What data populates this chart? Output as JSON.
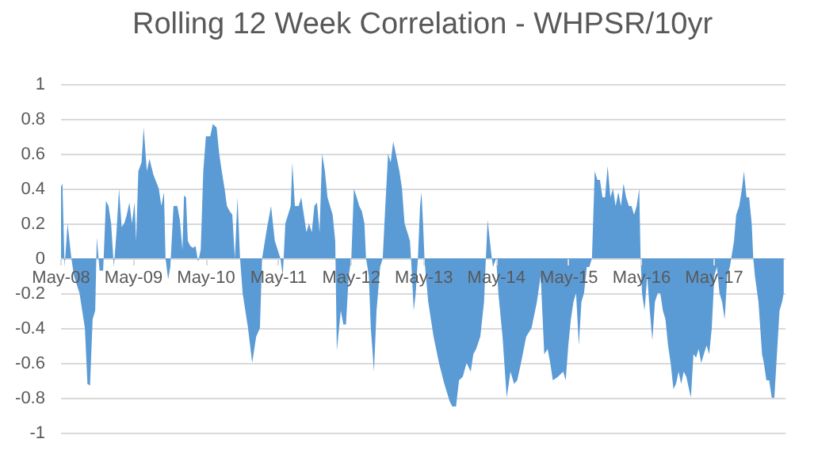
{
  "chart_data": {
    "type": "area",
    "title": "Rolling 12 Week Correlation - WHPSR/10yr",
    "x": [
      "2008-05-05",
      "2008-05-12",
      "2008-05-23",
      "2008-06-07",
      "2008-06-26",
      "2008-07-09",
      "2008-08-06",
      "2008-09-02",
      "2008-09-15",
      "2008-09-28",
      "2008-10-11",
      "2008-10-24",
      "2008-11-01",
      "2008-11-15",
      "2008-12-03",
      "2008-12-17",
      "2008-12-30",
      "2009-01-12",
      "2009-01-26",
      "2009-02-08",
      "2009-02-21",
      "2009-03-06",
      "2009-03-19",
      "2009-04-01",
      "2009-04-14",
      "2009-04-27",
      "2009-05-10",
      "2009-05-18",
      "2009-05-29",
      "2009-06-14",
      "2009-06-25",
      "2009-07-11",
      "2009-07-24",
      "2009-08-13",
      "2009-09-09",
      "2009-09-22",
      "2009-10-05",
      "2009-10-13",
      "2009-10-26",
      "2009-11-06",
      "2009-11-22",
      "2009-12-11",
      "2009-12-24",
      "2010-01-06",
      "2010-01-14",
      "2010-01-24",
      "2010-02-02",
      "2010-02-15",
      "2010-02-28",
      "2010-03-13",
      "2010-03-26",
      "2010-04-08",
      "2010-04-21",
      "2010-05-04",
      "2010-05-26",
      "2010-06-08",
      "2010-06-27",
      "2010-07-10",
      "2010-07-23",
      "2010-08-06",
      "2010-08-18",
      "2010-09-01",
      "2010-09-14",
      "2010-09-27",
      "2010-10-10",
      "2010-10-23",
      "2010-11-05",
      "2010-12-02",
      "2010-12-23",
      "2011-01-12",
      "2011-01-31",
      "2011-02-11",
      "2011-03-07",
      "2011-03-28",
      "2011-04-16",
      "2011-05-14",
      "2011-05-26",
      "2011-06-08",
      "2011-07-05",
      "2011-07-13",
      "2011-07-26",
      "2011-08-14",
      "2011-08-27",
      "2011-09-09",
      "2011-09-22",
      "2011-10-05",
      "2011-10-19",
      "2011-11-01",
      "2011-11-14",
      "2011-11-27",
      "2011-12-10",
      "2011-12-24",
      "2012-01-06",
      "2012-01-19",
      "2012-02-01",
      "2012-02-14",
      "2012-02-22",
      "2012-03-13",
      "2012-03-26",
      "2012-04-08",
      "2012-04-22",
      "2012-05-05",
      "2012-05-18",
      "2012-06-01",
      "2012-06-14",
      "2012-06-27",
      "2012-07-10",
      "2012-07-18",
      "2012-08-01",
      "2012-08-11",
      "2012-08-27",
      "2012-09-09",
      "2012-09-27",
      "2012-10-10",
      "2012-10-23",
      "2012-11-06",
      "2012-11-19",
      "2012-12-02",
      "2012-12-15",
      "2013-01-02",
      "2013-01-15",
      "2013-01-28",
      "2013-02-11",
      "2013-02-24",
      "2013-03-04",
      "2013-03-15",
      "2013-03-25",
      "2013-04-05",
      "2013-04-16",
      "2013-04-23",
      "2013-05-01",
      "2013-05-09",
      "2013-05-27",
      "2013-06-23",
      "2013-07-20",
      "2013-08-16",
      "2013-09-12",
      "2013-09-25",
      "2013-10-14",
      "2013-10-29",
      "2013-11-17",
      "2013-12-06",
      "2013-12-27",
      "2014-01-09",
      "2014-01-23",
      "2014-02-13",
      "2014-03-04",
      "2014-03-12",
      "2014-03-22",
      "2014-04-07",
      "2014-04-18",
      "2014-05-04",
      "2014-05-15",
      "2014-06-05",
      "2014-06-26",
      "2014-07-15",
      "2014-08-02",
      "2014-08-18",
      "2014-09-06",
      "2014-10-02",
      "2014-10-29",
      "2014-11-25",
      "2014-12-14",
      "2015-01-01",
      "2015-01-18",
      "2015-01-31",
      "2015-02-13",
      "2015-03-11",
      "2015-04-06",
      "2015-04-19",
      "2015-05-02",
      "2015-05-15",
      "2015-05-28",
      "2015-06-10",
      "2015-06-24",
      "2015-07-07",
      "2015-07-20",
      "2015-08-03",
      "2015-08-16",
      "2015-08-29",
      "2015-09-12",
      "2015-09-25",
      "2015-10-08",
      "2015-10-21",
      "2015-11-03",
      "2015-11-16",
      "2015-11-30",
      "2015-12-13",
      "2015-12-26",
      "2016-01-09",
      "2016-01-22",
      "2016-02-04",
      "2016-02-17",
      "2016-03-02",
      "2016-03-15",
      "2016-03-28",
      "2016-04-10",
      "2016-04-23",
      "2016-04-30",
      "2016-05-07",
      "2016-05-20",
      "2016-06-02",
      "2016-06-15",
      "2016-06-28",
      "2016-07-11",
      "2016-07-25",
      "2016-08-07",
      "2016-08-20",
      "2016-09-02",
      "2016-09-15",
      "2016-09-28",
      "2016-10-12",
      "2016-10-25",
      "2016-11-07",
      "2016-11-20",
      "2016-12-03",
      "2016-12-16",
      "2017-01-08",
      "2017-01-21",
      "2017-02-03",
      "2017-02-16",
      "2017-03-01",
      "2017-03-14",
      "2017-03-28",
      "2017-04-10",
      "2017-04-23",
      "2017-05-06",
      "2017-05-19",
      "2017-06-01",
      "2017-06-14",
      "2017-06-27",
      "2017-07-10",
      "2017-07-23",
      "2017-08-13",
      "2017-08-24",
      "2017-09-08",
      "2017-09-22",
      "2017-10-02",
      "2017-10-15",
      "2017-10-28",
      "2017-11-10",
      "2017-11-18",
      "2017-11-26",
      "2017-12-14",
      "2018-01-01",
      "2018-01-10",
      "2018-01-23",
      "2018-02-06",
      "2018-02-19",
      "2018-03-04",
      "2018-03-17",
      "2018-03-30",
      "2018-04-12",
      "2018-04-20"
    ],
    "series": [
      {
        "color": "#5b9bd5",
        "values": [
          0.41,
          0.43,
          -0.05,
          0.2,
          0,
          -0.1,
          -0.2,
          -0.4,
          -0.72,
          -0.73,
          -0.35,
          -0.3,
          0.12,
          -0.07,
          -0.07,
          0.33,
          0.3,
          0.2,
          -0.05,
          0.15,
          0.4,
          0.18,
          0.2,
          0.25,
          0.32,
          0.2,
          0.32,
          0.1,
          0.5,
          0.55,
          0.75,
          0.5,
          0.57,
          0.48,
          0.4,
          0.3,
          0.38,
          0,
          -0.12,
          -0.05,
          0.3,
          0.3,
          0.22,
          0.05,
          0.36,
          0.35,
          0.1,
          0.07,
          0.06,
          0.07,
          -0.02,
          0.05,
          0.5,
          0.7,
          0.7,
          0.77,
          0.75,
          0.6,
          0.5,
          0.4,
          0.3,
          0.27,
          0.25,
          0,
          0.35,
          0,
          -0.2,
          -0.4,
          -0.6,
          -0.45,
          -0.4,
          0,
          0.17,
          0.3,
          0.1,
          0,
          -0.1,
          0.2,
          0.3,
          0.55,
          0.3,
          0.3,
          0.35,
          0.25,
          0.15,
          0.2,
          0.15,
          0.3,
          0.32,
          0.15,
          0.6,
          0.5,
          0.35,
          0.3,
          0.25,
          0.1,
          -0.53,
          -0.3,
          -0.38,
          -0.38,
          -0.1,
          0,
          0.4,
          0.35,
          0.3,
          0.27,
          0.2,
          0,
          -0.1,
          -0.4,
          -0.65,
          -0.3,
          -0.05,
          0,
          0.3,
          0.6,
          0.55,
          0.67,
          0.6,
          0.5,
          0.4,
          0.2,
          0.15,
          0.1,
          -0.05,
          -0.3,
          -0.2,
          0,
          0.3,
          0.38,
          0.2,
          -0.02,
          -0.25,
          -0.45,
          -0.6,
          -0.72,
          -0.82,
          -0.85,
          -0.85,
          -0.7,
          -0.68,
          -0.6,
          -0.65,
          -0.55,
          -0.52,
          -0.45,
          -0.25,
          -0.03,
          0.22,
          0.05,
          -0.05,
          0,
          -0.2,
          -0.45,
          -0.8,
          -0.65,
          -0.72,
          -0.7,
          -0.6,
          -0.45,
          -0.4,
          -0.25,
          -0.1,
          -0.55,
          -0.52,
          -0.6,
          -0.7,
          -0.68,
          -0.65,
          -0.7,
          -0.5,
          -0.35,
          -0.25,
          -0.2,
          -0.5,
          -0.25,
          -0.2,
          -0.05,
          -0.05,
          0,
          0.5,
          0.45,
          0.45,
          0.35,
          0.35,
          0.53,
          0.35,
          0.4,
          0.3,
          0.38,
          0.3,
          0.43,
          0.35,
          0.3,
          0.3,
          0.25,
          0.3,
          0.4,
          0,
          -0.2,
          -0.3,
          -0.1,
          -0.3,
          -0.47,
          -0.25,
          -0.2,
          -0.2,
          -0.3,
          -0.35,
          -0.5,
          -0.6,
          -0.75,
          -0.72,
          -0.65,
          -0.72,
          -0.65,
          -0.68,
          -0.8,
          -0.55,
          -0.57,
          -0.52,
          -0.6,
          -0.55,
          -0.5,
          -0.55,
          -0.4,
          -0.1,
          -0.05,
          -0.2,
          -0.25,
          -0.35,
          -0.1,
          -0.05,
          0.1,
          0.25,
          0.3,
          0.4,
          0.5,
          0.35,
          0.35,
          0.2,
          0,
          -0.1,
          -0.25,
          -0.55,
          -0.6,
          -0.7,
          -0.7,
          -0.8,
          -0.8,
          -0.55,
          -0.3,
          -0.25,
          -0.2
        ]
      }
    ],
    "xlim": [
      "2008-05-01",
      "2018-04-25"
    ],
    "xticks": [
      {
        "value": "2008-05-01",
        "label": "May-08"
      },
      {
        "value": "2009-05-01",
        "label": "May-09"
      },
      {
        "value": "2010-05-01",
        "label": "May-10"
      },
      {
        "value": "2011-05-01",
        "label": "May-11"
      },
      {
        "value": "2012-05-01",
        "label": "May-12"
      },
      {
        "value": "2013-05-01",
        "label": "May-13"
      },
      {
        "value": "2014-05-01",
        "label": "May-14"
      },
      {
        "value": "2015-05-01",
        "label": "May-15"
      },
      {
        "value": "2016-05-01",
        "label": "May-16"
      },
      {
        "value": "2017-05-01",
        "label": "May-17"
      }
    ],
    "ylim": [
      -1,
      1
    ],
    "yticks": [
      -1,
      -0.8,
      -0.6,
      -0.4,
      -0.2,
      0,
      0.2,
      0.4,
      0.6,
      0.8,
      1
    ],
    "grid": "y"
  }
}
